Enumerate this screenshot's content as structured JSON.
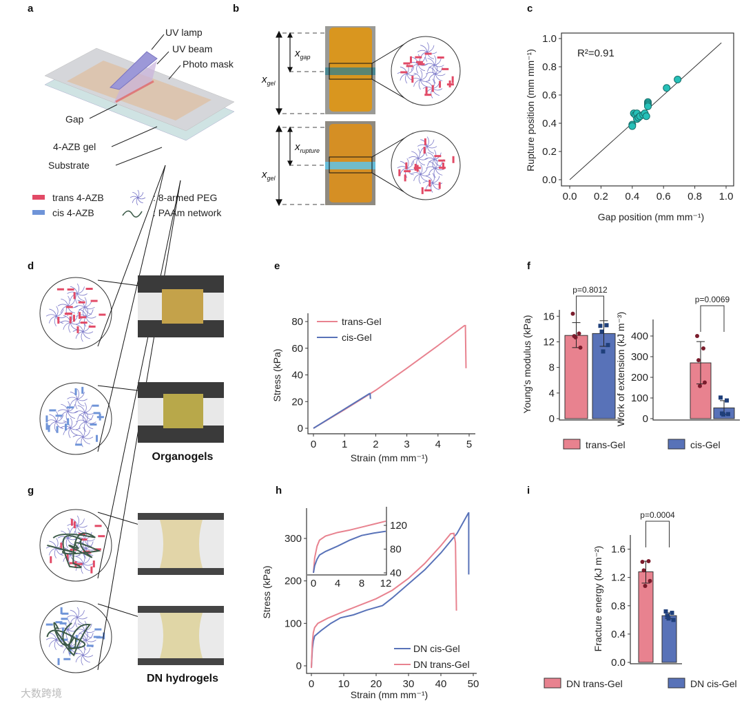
{
  "panel_labels": {
    "a": "a",
    "b": "b",
    "c": "c",
    "d": "d",
    "e": "e",
    "f": "f",
    "g": "g",
    "h": "h",
    "i": "i"
  },
  "colors": {
    "trans": "#e8828f",
    "cis": "#5872b8",
    "trans_dark": "#7a1c2c",
    "cis_dark": "#1f3f7a",
    "scatter": "#26c0b8",
    "peg": "#7a78c8",
    "paam": "#3c5a48",
    "gel": "#d99a2b"
  },
  "panel_a": {
    "uv_lamp": "UV lamp",
    "uv_beam": "UV beam",
    "photo_mask": "Photo mask",
    "gap": "Gap",
    "gel": "4-AZB gel",
    "substrate": "Substrate",
    "legend": {
      "trans": "trans 4-AZB",
      "cis": "cis 4-AZB",
      "peg": ": 8-armed PEG",
      "paam": ": PAAm network"
    }
  },
  "panel_b": {
    "x_gap": "x",
    "x_gap_sub": "gap",
    "x_gel": "x",
    "x_gel_sub": "gel",
    "x_rupture": "x",
    "x_rupture_sub": "rupture"
  },
  "panel_d": {
    "caption": "Organogels"
  },
  "panel_g": {
    "caption": "DN hydrogels"
  },
  "watermark": "大数跨境",
  "chart_data": [
    {
      "id": "c",
      "type": "scatter",
      "xlabel": "Gap position (mm mm⁻¹)",
      "ylabel": "Rupture position (mm mm⁻¹)",
      "xlim": [
        0,
        1
      ],
      "ylim": [
        0,
        1
      ],
      "xticks": [
        0,
        0.2,
        0.4,
        0.6,
        0.8,
        1.0
      ],
      "yticks": [
        0,
        0.2,
        0.4,
        0.6,
        0.8,
        1.0
      ],
      "annotation": "R²=0.91",
      "fit_line": [
        [
          0,
          0
        ],
        [
          0.97,
          0.97
        ]
      ],
      "points": [
        [
          0.4,
          0.39
        ],
        [
          0.4,
          0.38
        ],
        [
          0.41,
          0.47
        ],
        [
          0.42,
          0.46
        ],
        [
          0.43,
          0.47
        ],
        [
          0.43,
          0.43
        ],
        [
          0.44,
          0.44
        ],
        [
          0.45,
          0.45
        ],
        [
          0.47,
          0.46
        ],
        [
          0.48,
          0.47
        ],
        [
          0.49,
          0.45
        ],
        [
          0.5,
          0.55
        ],
        [
          0.5,
          0.54
        ],
        [
          0.5,
          0.53
        ],
        [
          0.5,
          0.52
        ],
        [
          0.62,
          0.65
        ],
        [
          0.69,
          0.71
        ]
      ]
    },
    {
      "id": "e",
      "type": "line",
      "xlabel": "Strain (mm mm⁻¹)",
      "ylabel": "Stress (kPa)",
      "xlim": [
        0,
        5
      ],
      "ylim": [
        0,
        80
      ],
      "xticks": [
        0,
        1,
        2,
        3,
        4,
        5
      ],
      "yticks": [
        0,
        20,
        40,
        60,
        80
      ],
      "legend_position": "top-left",
      "series": [
        {
          "name": "trans-Gel",
          "color_key": "trans",
          "points": [
            [
              0,
              0
            ],
            [
              1,
              14
            ],
            [
              2,
              28.5
            ],
            [
              3,
              45
            ],
            [
              4,
              62
            ],
            [
              4.85,
              77
            ],
            [
              4.88,
              77
            ],
            [
              4.9,
              45
            ]
          ]
        },
        {
          "name": "cis-Gel",
          "color_key": "cis",
          "points": [
            [
              0,
              0
            ],
            [
              0.9,
              13
            ],
            [
              1.8,
              26
            ],
            [
              1.82,
              26
            ],
            [
              1.83,
              22
            ]
          ]
        }
      ]
    },
    {
      "id": "f1",
      "type": "bar",
      "ylabel": "Young's modulus (kPa)",
      "ylim": [
        0,
        17
      ],
      "yticks": [
        0,
        4,
        8,
        12,
        16
      ],
      "categories": [
        "trans-Gel",
        "cis-Gel"
      ],
      "values": [
        13.0,
        13.3
      ],
      "errors": [
        [
          11.1,
          15.0
        ],
        [
          11.3,
          15.3
        ]
      ],
      "points": [
        [
          16.4,
          13.3,
          12.9,
          11.1,
          12.7
        ],
        [
          14.5,
          14.6,
          13.6,
          11.5,
          10.5
        ]
      ],
      "p_value": "p=0.8012"
    },
    {
      "id": "f2",
      "type": "bar",
      "ylabel": "Work of extension (kJ m⁻³)",
      "ylim": [
        0,
        480
      ],
      "yticks": [
        0,
        100,
        200,
        300,
        400
      ],
      "categories": [
        "trans-Gel",
        "cis-Gel"
      ],
      "values": [
        270,
        52
      ],
      "errors": [
        [
          168,
          373
        ],
        [
          20,
          87
        ]
      ],
      "points": [
        [
          400,
          340,
          283,
          175,
          158
        ],
        [
          102,
          88,
          25,
          22,
          20
        ]
      ],
      "p_value": "p=0.0069",
      "legend": [
        "trans-Gel",
        "cis-Gel"
      ]
    },
    {
      "id": "h",
      "type": "line",
      "xlabel": "Strain (mm mm⁻¹)",
      "ylabel": "Stress (kPa)",
      "xlim": [
        0,
        50
      ],
      "ylim": [
        0,
        350
      ],
      "xticks": [
        0,
        10,
        20,
        30,
        40,
        50
      ],
      "yticks": [
        0,
        100,
        200,
        300
      ],
      "legend_position": "bottom-right",
      "series": [
        {
          "name": "DN cis-Gel",
          "color_key": "cis",
          "points": [
            [
              0,
              -5
            ],
            [
              0.3,
              40
            ],
            [
              0.6,
              58
            ],
            [
              1,
              70
            ],
            [
              3,
              83
            ],
            [
              6,
              100
            ],
            [
              9,
              113
            ],
            [
              13,
              120
            ],
            [
              17,
              131
            ],
            [
              22,
              142
            ],
            [
              25,
              160
            ],
            [
              30,
              193
            ],
            [
              35,
              226
            ],
            [
              40,
              266
            ],
            [
              45,
              312
            ],
            [
              48.5,
              360
            ],
            [
              48.6,
              360
            ],
            [
              48.6,
              215
            ]
          ]
        },
        {
          "name": "DN trans-Gel",
          "color_key": "trans",
          "points": [
            [
              0,
              -5
            ],
            [
              0.3,
              55
            ],
            [
              0.6,
              78
            ],
            [
              1,
              90
            ],
            [
              2,
              100
            ],
            [
              5,
              112
            ],
            [
              10,
              128
            ],
            [
              15,
              143
            ],
            [
              18,
              152
            ],
            [
              20,
              158
            ],
            [
              25,
              178
            ],
            [
              30,
              206
            ],
            [
              35,
              241
            ],
            [
              40,
              283
            ],
            [
              43,
              311
            ],
            [
              44,
              312
            ],
            [
              44.5,
              290
            ],
            [
              44.8,
              130
            ]
          ]
        }
      ],
      "inset": {
        "xlim": [
          0,
          12
        ],
        "ylim": [
          40,
          140
        ],
        "xticks": [
          0,
          4,
          8,
          12
        ],
        "yticks": [
          40,
          80,
          120
        ],
        "series": [
          {
            "name": "DN trans-Gel",
            "color_key": "trans",
            "points": [
              [
                0,
                40
              ],
              [
                0.2,
                65
              ],
              [
                0.6,
                85
              ],
              [
                1,
                95
              ],
              [
                2,
                102
              ],
              [
                4,
                108
              ],
              [
                6,
                112
              ],
              [
                8,
                117
              ],
              [
                10,
                122
              ],
              [
                12,
                127
              ]
            ]
          },
          {
            "name": "DN cis-Gel",
            "color_key": "cis",
            "points": [
              [
                0,
                40
              ],
              [
                0.2,
                52
              ],
              [
                0.6,
                63
              ],
              [
                1,
                70
              ],
              [
                2,
                76
              ],
              [
                4,
                85
              ],
              [
                6,
                95
              ],
              [
                8,
                103
              ],
              [
                10,
                107
              ],
              [
                12,
                110
              ]
            ]
          }
        ]
      }
    },
    {
      "id": "i",
      "type": "bar",
      "ylabel": "Fracture energy (kJ m⁻²)",
      "ylim": [
        0,
        1.8
      ],
      "yticks": [
        0,
        0.4,
        0.8,
        1.2,
        1.6
      ],
      "categories": [
        "DN trans-Gel",
        "DN cis-Gel"
      ],
      "values": [
        1.28,
        0.66
      ],
      "errors": [
        [
          1.12,
          1.43
        ],
        [
          0.62,
          0.7
        ]
      ],
      "points": [
        [
          1.42,
          1.43,
          1.3,
          1.15,
          1.08
        ],
        [
          0.72,
          0.7,
          0.66,
          0.6,
          0.62
        ]
      ],
      "p_value": "p=0.0004",
      "legend": [
        "DN trans-Gel",
        "DN cis-Gel"
      ]
    }
  ]
}
